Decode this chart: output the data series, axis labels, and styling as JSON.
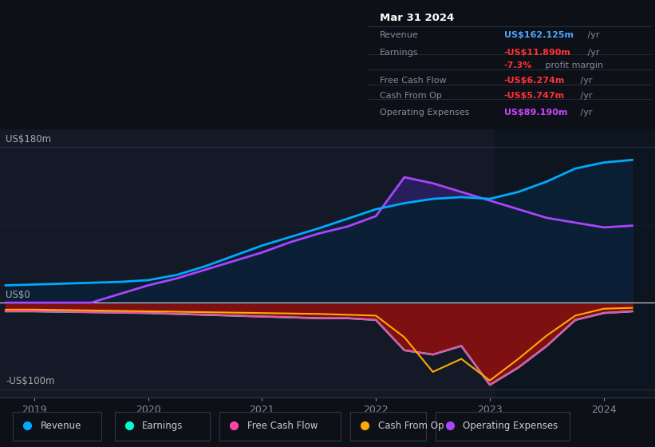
{
  "background_color": "#0d1117",
  "chart_bg_color": "#131926",
  "ylim": [
    -110,
    200
  ],
  "xlim": [
    2018.7,
    2024.45
  ],
  "xticks": [
    2019,
    2020,
    2021,
    2022,
    2023,
    2024
  ],
  "grid_color": "#2a3040",
  "zero_line_color": "#cccccc",
  "highlight_rect_x": 2023.05,
  "highlight_rect_end": 2024.45,
  "tooltip": {
    "title": "Mar 31 2024",
    "rows": [
      {
        "label": "Revenue",
        "value": "US$162.125m",
        "suffix": " /yr",
        "value_color": "#4da6ff"
      },
      {
        "label": "Earnings",
        "value": "-US$11.890m",
        "suffix": " /yr",
        "value_color": "#ff4444"
      },
      {
        "label": "",
        "value": "-7.3%",
        "suffix": " profit margin",
        "value_color": "#ff4444"
      },
      {
        "label": "Free Cash Flow",
        "value": "-US$6.274m",
        "suffix": " /yr",
        "value_color": "#ff4444"
      },
      {
        "label": "Cash From Op",
        "value": "-US$5.747m",
        "suffix": " /yr",
        "value_color": "#ff4444"
      },
      {
        "label": "Operating Expenses",
        "value": "US$89.190m",
        "suffix": " /yr",
        "value_color": "#cc44ff"
      }
    ],
    "bg_color": "#0a0e14",
    "border_color": "#2a3040",
    "text_color": "#888899",
    "title_color": "#ffffff"
  },
  "series": {
    "revenue": {
      "color": "#00aaff",
      "label": "Revenue",
      "x": [
        2018.75,
        2019.0,
        2019.25,
        2019.5,
        2019.75,
        2020.0,
        2020.25,
        2020.5,
        2020.75,
        2021.0,
        2021.25,
        2021.5,
        2021.75,
        2022.0,
        2022.25,
        2022.5,
        2022.75,
        2023.0,
        2023.25,
        2023.5,
        2023.75,
        2024.0,
        2024.25
      ],
      "y": [
        20,
        21,
        22,
        23,
        24,
        26,
        32,
        42,
        54,
        66,
        76,
        86,
        97,
        108,
        115,
        120,
        122,
        120,
        128,
        140,
        155,
        162,
        165
      ]
    },
    "earnings": {
      "color": "#00ffcc",
      "label": "Earnings",
      "x": [
        2018.75,
        2019.0,
        2019.5,
        2020.0,
        2020.5,
        2021.0,
        2021.5,
        2021.75,
        2022.0,
        2022.25,
        2022.5,
        2022.75,
        2023.0,
        2023.25,
        2023.5,
        2023.75,
        2024.0,
        2024.25
      ],
      "y": [
        -10,
        -10,
        -11,
        -12,
        -14,
        -16,
        -18,
        -18,
        -20,
        -55,
        -60,
        -50,
        -95,
        -75,
        -50,
        -20,
        -12,
        -10
      ]
    },
    "free_cash_flow": {
      "color": "#ff44aa",
      "label": "Free Cash Flow",
      "x": [
        2018.75,
        2019.0,
        2019.5,
        2020.0,
        2020.5,
        2021.0,
        2021.5,
        2021.75,
        2022.0,
        2022.25,
        2022.5,
        2022.75,
        2023.0,
        2023.25,
        2023.5,
        2023.75,
        2024.0,
        2024.25
      ],
      "y": [
        -10,
        -10,
        -11,
        -12,
        -14,
        -16,
        -18,
        -18,
        -20,
        -55,
        -60,
        -50,
        -95,
        -75,
        -50,
        -20,
        -12,
        -10
      ]
    },
    "cash_from_op": {
      "color": "#ffaa00",
      "label": "Cash From Op",
      "x": [
        2018.75,
        2019.0,
        2019.5,
        2020.0,
        2020.5,
        2021.0,
        2021.5,
        2021.75,
        2022.0,
        2022.25,
        2022.5,
        2022.75,
        2023.0,
        2023.25,
        2023.5,
        2023.75,
        2024.0,
        2024.25
      ],
      "y": [
        -8,
        -8,
        -9,
        -10,
        -11,
        -12,
        -13,
        -14,
        -15,
        -40,
        -80,
        -65,
        -90,
        -65,
        -38,
        -15,
        -7,
        -6
      ]
    },
    "operating_expenses": {
      "color": "#aa44ff",
      "label": "Operating Expenses",
      "x": [
        2018.75,
        2019.0,
        2019.5,
        2020.0,
        2020.25,
        2020.5,
        2020.75,
        2021.0,
        2021.25,
        2021.5,
        2021.75,
        2022.0,
        2022.25,
        2022.5,
        2022.75,
        2023.0,
        2023.5,
        2024.0,
        2024.25
      ],
      "y": [
        0,
        0,
        0,
        20,
        28,
        38,
        48,
        58,
        70,
        80,
        88,
        100,
        145,
        138,
        128,
        118,
        98,
        87,
        89
      ]
    }
  },
  "legend": [
    {
      "label": "Revenue",
      "color": "#00aaff"
    },
    {
      "label": "Earnings",
      "color": "#00ffcc"
    },
    {
      "label": "Free Cash Flow",
      "color": "#ff44aa"
    },
    {
      "label": "Cash From Op",
      "color": "#ffaa00"
    },
    {
      "label": "Operating Expenses",
      "color": "#aa44ff"
    }
  ]
}
